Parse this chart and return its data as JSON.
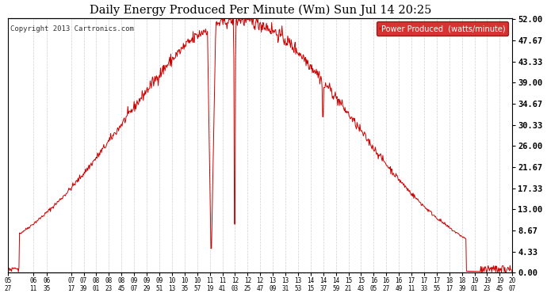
{
  "title": "Daily Energy Produced Per Minute (Wm) Sun Jul 14 20:25",
  "copyright": "Copyright 2013 Cartronics.com",
  "legend_label": "Power Produced  (watts/minute)",
  "legend_bg": "#cc0000",
  "legend_fg": "#ffffff",
  "line_color": "#cc0000",
  "bg_color": "#ffffff",
  "grid_color": "#cccccc",
  "title_color": "#000000",
  "ylabel_right": [
    "52.00",
    "47.67",
    "43.33",
    "39.00",
    "34.67",
    "30.33",
    "26.00",
    "21.67",
    "17.33",
    "13.00",
    "8.67",
    "4.33",
    "0.00"
  ],
  "ymax": 52.0,
  "ymin": 0.0,
  "xtick_labels": [
    "05:27",
    "06:11",
    "06:35",
    "07:17",
    "07:39",
    "08:01",
    "08:23",
    "08:45",
    "09:07",
    "09:29",
    "09:51",
    "10:13",
    "10:35",
    "10:57",
    "11:19",
    "11:41",
    "12:03",
    "12:25",
    "12:47",
    "13:09",
    "13:31",
    "13:53",
    "14:15",
    "14:37",
    "14:59",
    "15:21",
    "15:43",
    "16:05",
    "16:27",
    "16:49",
    "17:11",
    "17:33",
    "17:55",
    "18:17",
    "18:39",
    "19:01",
    "19:23",
    "19:45",
    "20:07"
  ]
}
